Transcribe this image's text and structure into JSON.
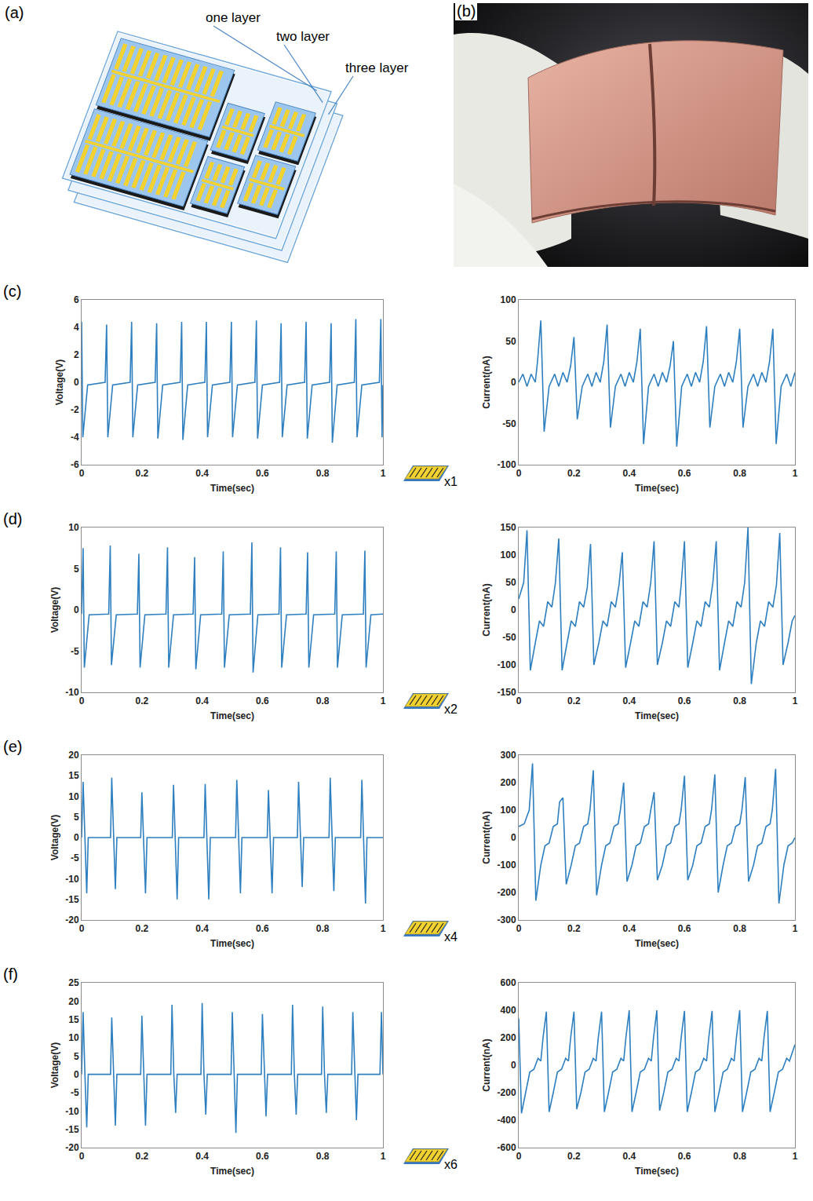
{
  "diagram": {
    "panel": "(a)",
    "labels": [
      "one layer",
      "two layer",
      "three layer"
    ]
  },
  "photo": {
    "panel": "(b)"
  },
  "rows": [
    {
      "panel": "(c)",
      "multiplier": "x1"
    },
    {
      "panel": "(d)",
      "multiplier": "x2"
    },
    {
      "panel": "(e)",
      "multiplier": "x4"
    },
    {
      "panel": "(f)",
      "multiplier": "x6"
    }
  ],
  "chart_data": [
    {
      "type": "line",
      "x_label": "Time(sec)",
      "y_label": "Voltage(V)",
      "color": "#2e7fc0",
      "grid": false,
      "xlim": [
        0,
        1
      ],
      "xticks": [
        0,
        0.2,
        0.4,
        0.6,
        0.8,
        1
      ],
      "ylim": [
        -6,
        6
      ],
      "yticks": [
        -6,
        -4,
        -2,
        0,
        2,
        4,
        6
      ],
      "x": [
        0,
        0.004,
        0.02,
        0.078,
        0.083,
        0.087,
        0.103,
        0.161,
        0.166,
        0.17,
        0.186,
        0.244,
        0.249,
        0.253,
        0.269,
        0.327,
        0.332,
        0.336,
        0.352,
        0.409,
        0.414,
        0.418,
        0.434,
        0.492,
        0.497,
        0.501,
        0.517,
        0.575,
        0.58,
        0.584,
        0.6,
        0.657,
        0.662,
        0.666,
        0.682,
        0.74,
        0.745,
        0.749,
        0.765,
        0.823,
        0.828,
        0.832,
        0.848,
        0.905,
        0.91,
        0.914,
        0.93,
        0.988,
        0.993,
        0.997,
        1
      ],
      "values": [
        4.4,
        -4,
        -0.2,
        0,
        4.2,
        -4,
        -0.2,
        0,
        4.4,
        -4,
        -0.2,
        0,
        4.3,
        -4.1,
        -0.2,
        0,
        4.4,
        -4.2,
        -0.2,
        0,
        4.4,
        -4,
        -0.2,
        0,
        4.4,
        -4,
        -0.2,
        0,
        4.5,
        -4.1,
        -0.2,
        0,
        4.3,
        -4,
        -0.2,
        0,
        4.4,
        -4.1,
        -0.2,
        0,
        4.3,
        -4.4,
        -0.2,
        0,
        4.6,
        -4,
        -0.2,
        0,
        4.6,
        -4,
        -0.2
      ]
    },
    {
      "type": "line",
      "x_label": "Time(sec)",
      "y_label": "Current(nA)",
      "color": "#2e7fc0",
      "grid": false,
      "xlim": [
        0,
        1
      ],
      "xticks": [
        0,
        0.2,
        0.4,
        0.6,
        0.8,
        1
      ],
      "ylim": [
        -100,
        100
      ],
      "yticks": [
        -100,
        -50,
        0,
        50,
        100
      ],
      "x": [
        0,
        0.015,
        0.03,
        0.045,
        0.06,
        0.068,
        0.08,
        0.092,
        0.11,
        0.13,
        0.145,
        0.16,
        0.175,
        0.188,
        0.2,
        0.212,
        0.23,
        0.25,
        0.265,
        0.28,
        0.295,
        0.308,
        0.32,
        0.332,
        0.35,
        0.37,
        0.385,
        0.4,
        0.415,
        0.428,
        0.44,
        0.452,
        0.47,
        0.49,
        0.505,
        0.52,
        0.535,
        0.548,
        0.56,
        0.572,
        0.59,
        0.61,
        0.625,
        0.64,
        0.655,
        0.668,
        0.68,
        0.692,
        0.71,
        0.73,
        0.745,
        0.76,
        0.775,
        0.788,
        0.8,
        0.812,
        0.83,
        0.85,
        0.865,
        0.88,
        0.895,
        0.908,
        0.92,
        0.932,
        0.95,
        0.97,
        0.985,
        1
      ],
      "values": [
        0,
        10,
        -5,
        10,
        0,
        25,
        75,
        -60,
        -5,
        10,
        -5,
        12,
        0,
        20,
        55,
        -45,
        -5,
        10,
        -5,
        12,
        0,
        25,
        70,
        -55,
        -5,
        10,
        -5,
        12,
        0,
        25,
        65,
        -75,
        -5,
        10,
        -5,
        12,
        0,
        20,
        50,
        -78,
        -5,
        10,
        -5,
        12,
        0,
        25,
        68,
        -55,
        -5,
        10,
        -5,
        12,
        0,
        25,
        65,
        -55,
        -5,
        10,
        -5,
        12,
        0,
        25,
        65,
        -75,
        -5,
        10,
        -5,
        12
      ]
    },
    {
      "type": "line",
      "x_label": "Time(sec)",
      "y_label": "Voltage(V)",
      "color": "#2e7fc0",
      "grid": false,
      "xlim": [
        0,
        1
      ],
      "xticks": [
        0,
        0.2,
        0.4,
        0.6,
        0.8,
        1
      ],
      "ylim": [
        -10,
        10
      ],
      "yticks": [
        -10,
        -5,
        0,
        5,
        10
      ],
      "x": [
        0,
        0.005,
        0.009,
        0.025,
        0.09,
        0.095,
        0.099,
        0.115,
        0.185,
        0.19,
        0.194,
        0.21,
        0.28,
        0.285,
        0.289,
        0.305,
        0.37,
        0.375,
        0.379,
        0.395,
        0.465,
        0.47,
        0.474,
        0.49,
        0.56,
        0.565,
        0.569,
        0.585,
        0.655,
        0.66,
        0.664,
        0.68,
        0.745,
        0.75,
        0.754,
        0.77,
        0.84,
        0.845,
        0.849,
        0.865,
        0.935,
        0.94,
        0.944,
        0.96,
        1
      ],
      "values": [
        -0.5,
        7.5,
        -7,
        -0.6,
        -0.5,
        7.8,
        -6.7,
        -0.6,
        -0.5,
        6.8,
        -7,
        -0.6,
        -0.5,
        7.6,
        -7,
        -0.6,
        -0.5,
        6.4,
        -7.2,
        -0.6,
        -0.5,
        7.1,
        -7,
        -0.6,
        -0.5,
        8.2,
        -7.6,
        -0.6,
        -0.5,
        7.6,
        -7,
        -0.6,
        -0.5,
        7,
        -7,
        -0.6,
        -0.5,
        7.1,
        -7,
        -0.6,
        -0.5,
        7.2,
        -7,
        -0.6,
        -0.5
      ]
    },
    {
      "type": "line",
      "x_label": "Time(sec)",
      "y_label": "Current(nA)",
      "color": "#2e7fc0",
      "grid": false,
      "xlim": [
        0,
        1
      ],
      "xticks": [
        0,
        0.2,
        0.4,
        0.6,
        0.8,
        1
      ],
      "ylim": [
        -150,
        150
      ],
      "yticks": [
        -150,
        -100,
        -50,
        0,
        50,
        100,
        150
      ],
      "x": [
        0,
        0.018,
        0.03,
        0.042,
        0.06,
        0.075,
        0.09,
        0.105,
        0.12,
        0.133,
        0.145,
        0.157,
        0.175,
        0.19,
        0.205,
        0.22,
        0.235,
        0.248,
        0.26,
        0.272,
        0.29,
        0.305,
        0.32,
        0.335,
        0.35,
        0.363,
        0.375,
        0.387,
        0.405,
        0.42,
        0.435,
        0.45,
        0.465,
        0.478,
        0.49,
        0.502,
        0.52,
        0.535,
        0.55,
        0.565,
        0.58,
        0.588,
        0.6,
        0.612,
        0.63,
        0.645,
        0.66,
        0.675,
        0.69,
        0.703,
        0.715,
        0.727,
        0.745,
        0.76,
        0.775,
        0.79,
        0.805,
        0.818,
        0.83,
        0.842,
        0.86,
        0.875,
        0.89,
        0.905,
        0.92,
        0.933,
        0.945,
        0.957,
        0.975,
        0.99,
        1
      ],
      "values": [
        20,
        50,
        145,
        -110,
        -60,
        -20,
        -30,
        15,
        5,
        50,
        130,
        -110,
        -60,
        -20,
        -30,
        15,
        5,
        40,
        120,
        -100,
        -60,
        -20,
        -30,
        15,
        5,
        45,
        105,
        -105,
        -60,
        -20,
        -30,
        15,
        5,
        50,
        125,
        -100,
        -60,
        -20,
        -30,
        15,
        5,
        45,
        125,
        -105,
        -60,
        -20,
        -30,
        15,
        5,
        50,
        125,
        -110,
        -60,
        -20,
        -30,
        15,
        5,
        50,
        150,
        -135,
        -60,
        -20,
        -30,
        15,
        5,
        45,
        140,
        -100,
        -60,
        -20,
        -10
      ]
    },
    {
      "type": "line",
      "x_label": "Time(sec)",
      "y_label": "Voltage(V)",
      "color": "#2e7fc0",
      "grid": false,
      "xlim": [
        0,
        1
      ],
      "xticks": [
        0,
        0.2,
        0.4,
        0.6,
        0.8,
        1
      ],
      "ylim": [
        -20,
        20
      ],
      "yticks": [
        -20,
        -15,
        -10,
        -5,
        0,
        5,
        10,
        15,
        20
      ],
      "x": [
        0,
        0.005,
        0.011,
        0.017,
        0.022,
        0.096,
        0.1,
        0.106,
        0.112,
        0.117,
        0.196,
        0.2,
        0.206,
        0.212,
        0.217,
        0.301,
        0.305,
        0.311,
        0.317,
        0.322,
        0.406,
        0.41,
        0.416,
        0.422,
        0.427,
        0.511,
        0.515,
        0.521,
        0.527,
        0.532,
        0.616,
        0.62,
        0.626,
        0.632,
        0.637,
        0.716,
        0.72,
        0.726,
        0.732,
        0.737,
        0.821,
        0.825,
        0.831,
        0.837,
        0.842,
        0.926,
        0.93,
        0.936,
        0.942,
        0.947,
        1
      ],
      "values": [
        0,
        13.5,
        0,
        -13.5,
        0,
        0,
        14.5,
        0,
        -12.5,
        0,
        0,
        11,
        0,
        -13.5,
        0,
        0,
        12.8,
        0,
        -15,
        0,
        0,
        13,
        0,
        -15,
        0,
        0,
        14,
        0,
        -13.5,
        0,
        0,
        11.5,
        0,
        -13.5,
        0,
        0,
        13.5,
        0,
        -12,
        0,
        0,
        14.5,
        0,
        -13,
        0,
        0,
        14,
        0,
        -16,
        0,
        0
      ]
    },
    {
      "type": "line",
      "x_label": "Time(sec)",
      "y_label": "Current(nA)",
      "color": "#2e7fc0",
      "grid": false,
      "xlim": [
        0,
        1
      ],
      "xticks": [
        0,
        0.2,
        0.4,
        0.6,
        0.8,
        1
      ],
      "ylim": [
        -300,
        300
      ],
      "yticks": [
        -300,
        -200,
        -100,
        0,
        100,
        200,
        300
      ],
      "x": [
        0,
        0.02,
        0.038,
        0.05,
        0.062,
        0.08,
        0.095,
        0.11,
        0.125,
        0.14,
        0.148,
        0.16,
        0.172,
        0.19,
        0.205,
        0.22,
        0.235,
        0.25,
        0.258,
        0.27,
        0.282,
        0.3,
        0.315,
        0.33,
        0.345,
        0.36,
        0.368,
        0.38,
        0.392,
        0.41,
        0.425,
        0.44,
        0.455,
        0.47,
        0.478,
        0.49,
        0.502,
        0.52,
        0.535,
        0.55,
        0.565,
        0.58,
        0.588,
        0.6,
        0.612,
        0.63,
        0.645,
        0.66,
        0.675,
        0.69,
        0.698,
        0.71,
        0.722,
        0.74,
        0.755,
        0.77,
        0.785,
        0.8,
        0.808,
        0.82,
        0.832,
        0.85,
        0.865,
        0.88,
        0.895,
        0.91,
        0.918,
        0.93,
        0.942,
        0.96,
        0.975,
        0.99,
        1
      ],
      "values": [
        40,
        50,
        100,
        270,
        -230,
        -100,
        -30,
        -20,
        40,
        50,
        130,
        145,
        -170,
        -100,
        -30,
        -20,
        40,
        50,
        100,
        245,
        -210,
        -100,
        -30,
        -20,
        40,
        50,
        100,
        200,
        -160,
        -100,
        -30,
        -20,
        40,
        50,
        100,
        165,
        -155,
        -100,
        -30,
        -20,
        40,
        50,
        100,
        225,
        -155,
        -100,
        -30,
        -20,
        40,
        50,
        100,
        230,
        -200,
        -100,
        -30,
        -20,
        40,
        50,
        100,
        220,
        -160,
        -100,
        -30,
        -20,
        40,
        50,
        100,
        250,
        -240,
        -100,
        -30,
        -20,
        0
      ]
    },
    {
      "type": "line",
      "x_label": "Time(sec)",
      "y_label": "Voltage(V)",
      "color": "#2e7fc0",
      "grid": false,
      "xlim": [
        0,
        1
      ],
      "xticks": [
        0,
        0.2,
        0.4,
        0.6,
        0.8,
        1
      ],
      "ylim": [
        -20,
        25
      ],
      "yticks": [
        -20,
        -15,
        -10,
        -5,
        0,
        5,
        10,
        15,
        20,
        25
      ],
      "x": [
        0,
        0.005,
        0.011,
        0.017,
        0.022,
        0.096,
        0.1,
        0.106,
        0.112,
        0.117,
        0.196,
        0.2,
        0.206,
        0.212,
        0.217,
        0.296,
        0.3,
        0.306,
        0.312,
        0.317,
        0.396,
        0.4,
        0.406,
        0.412,
        0.417,
        0.496,
        0.5,
        0.506,
        0.512,
        0.517,
        0.596,
        0.6,
        0.606,
        0.612,
        0.617,
        0.696,
        0.7,
        0.706,
        0.712,
        0.717,
        0.796,
        0.8,
        0.806,
        0.812,
        0.817,
        0.896,
        0.9,
        0.906,
        0.912,
        0.917,
        0.99,
        0.995,
        1
      ],
      "values": [
        0,
        17,
        0,
        -14.5,
        0,
        0,
        15.5,
        0,
        -14,
        0,
        0,
        16,
        0,
        -14,
        0,
        0,
        19,
        0,
        -10.5,
        0,
        0,
        19.5,
        0,
        -11,
        0,
        0,
        17,
        0,
        -16,
        0,
        0,
        16.5,
        0,
        -11.5,
        0,
        0,
        19,
        0,
        -11,
        0,
        0,
        18.5,
        0,
        -10.5,
        0,
        0,
        17,
        0,
        -12.5,
        0,
        0,
        17,
        0
      ]
    },
    {
      "type": "line",
      "x_label": "Time(sec)",
      "y_label": "Current(nA)",
      "color": "#2e7fc0",
      "grid": false,
      "xlim": [
        0,
        1
      ],
      "xticks": [
        0,
        0.2,
        0.4,
        0.6,
        0.8,
        1
      ],
      "ylim": [
        -600,
        600
      ],
      "yticks": [
        -600,
        -400,
        -200,
        0,
        200,
        400,
        600
      ],
      "x": [
        0,
        0.01,
        0.025,
        0.04,
        0.055,
        0.07,
        0.08,
        0.088,
        0.1,
        0.11,
        0.125,
        0.14,
        0.155,
        0.17,
        0.18,
        0.188,
        0.2,
        0.21,
        0.225,
        0.24,
        0.255,
        0.27,
        0.28,
        0.288,
        0.3,
        0.31,
        0.325,
        0.34,
        0.355,
        0.37,
        0.38,
        0.388,
        0.4,
        0.41,
        0.425,
        0.44,
        0.455,
        0.47,
        0.48,
        0.488,
        0.5,
        0.51,
        0.525,
        0.54,
        0.555,
        0.57,
        0.58,
        0.588,
        0.6,
        0.61,
        0.625,
        0.64,
        0.655,
        0.67,
        0.68,
        0.688,
        0.7,
        0.71,
        0.725,
        0.74,
        0.755,
        0.77,
        0.78,
        0.788,
        0.8,
        0.81,
        0.825,
        0.84,
        0.855,
        0.87,
        0.88,
        0.888,
        0.9,
        0.91,
        0.925,
        0.94,
        0.955,
        0.97,
        0.98,
        1
      ],
      "values": [
        340,
        -350,
        -200,
        -50,
        -30,
        50,
        30,
        200,
        390,
        -340,
        -200,
        -50,
        -30,
        50,
        30,
        200,
        390,
        -320,
        -200,
        -50,
        -30,
        50,
        30,
        200,
        390,
        -340,
        -200,
        -50,
        -30,
        50,
        30,
        200,
        400,
        -340,
        -200,
        -50,
        -30,
        50,
        30,
        200,
        400,
        -330,
        -200,
        -50,
        -30,
        50,
        30,
        200,
        395,
        -340,
        -200,
        -50,
        -30,
        50,
        30,
        200,
        395,
        -340,
        -200,
        -50,
        -30,
        50,
        30,
        200,
        400,
        -340,
        -200,
        -50,
        -30,
        50,
        30,
        200,
        395,
        -340,
        -200,
        -50,
        -30,
        50,
        30,
        150
      ]
    }
  ]
}
